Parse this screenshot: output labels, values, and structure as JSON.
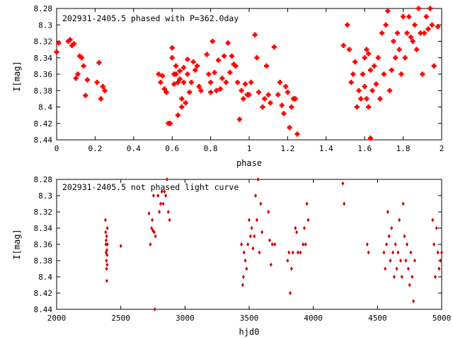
{
  "chart_data": [
    {
      "type": "scatter",
      "title": "202931-2405.5 phased with P=362.0day",
      "xlabel": "phase",
      "ylabel": "I[mag]",
      "xlim": [
        0,
        2
      ],
      "ylim": [
        8.44,
        8.28
      ],
      "y_inverted": true,
      "x_ticks": [
        0,
        0.2,
        0.4,
        0.6,
        0.8,
        1,
        1.2,
        1.4,
        1.6,
        1.8,
        2
      ],
      "x_tick_labels": [
        "0",
        "0.2",
        "0.4",
        "0.6",
        "0.8",
        "1",
        "1.2",
        "1.4",
        "1.6",
        "1.8",
        "2"
      ],
      "y_ticks": [
        8.28,
        8.3,
        8.32,
        8.34,
        8.36,
        8.38,
        8.4,
        8.42,
        8.44
      ],
      "y_tick_labels": [
        "8.28",
        "8.3",
        "8.32",
        "8.34",
        "8.36",
        "8.38",
        "8.4",
        "8.42",
        "8.44"
      ],
      "marker_color": "#ff0000",
      "grid": false,
      "points": [
        [
          0.0,
          8.333
        ],
        [
          0.01,
          8.322
        ],
        [
          0.06,
          8.32
        ],
        [
          0.07,
          8.318
        ],
        [
          0.08,
          8.325
        ],
        [
          0.09,
          8.323
        ],
        [
          0.1,
          8.365
        ],
        [
          0.11,
          8.36
        ],
        [
          0.12,
          8.338
        ],
        [
          0.13,
          8.34
        ],
        [
          0.14,
          8.35
        ],
        [
          0.15,
          8.386
        ],
        [
          0.16,
          8.367
        ],
        [
          0.21,
          8.37
        ],
        [
          0.22,
          8.346
        ],
        [
          0.23,
          8.39
        ],
        [
          0.24,
          8.375
        ],
        [
          0.25,
          8.38
        ],
        [
          0.53,
          8.36
        ],
        [
          0.54,
          8.37
        ],
        [
          0.55,
          8.362
        ],
        [
          0.56,
          8.378
        ],
        [
          0.57,
          8.382
        ],
        [
          0.58,
          8.42
        ],
        [
          0.59,
          8.42
        ],
        [
          0.6,
          8.34
        ],
        [
          0.6,
          8.328
        ],
        [
          0.61,
          8.36
        ],
        [
          0.61,
          8.372
        ],
        [
          0.62,
          8.36
        ],
        [
          0.62,
          8.35
        ],
        [
          0.63,
          8.37
        ],
        [
          0.63,
          8.41
        ],
        [
          0.64,
          8.366
        ],
        [
          0.64,
          8.356
        ],
        [
          0.65,
          8.4
        ],
        [
          0.65,
          8.39
        ],
        [
          0.66,
          8.37
        ],
        [
          0.66,
          8.352
        ],
        [
          0.67,
          8.395
        ],
        [
          0.68,
          8.36
        ],
        [
          0.68,
          8.342
        ],
        [
          0.69,
          8.382
        ],
        [
          0.7,
          8.37
        ],
        [
          0.71,
          8.345
        ],
        [
          0.72,
          8.355
        ],
        [
          0.73,
          8.35
        ],
        [
          0.74,
          8.375
        ],
        [
          0.75,
          8.38
        ],
        [
          0.78,
          8.336
        ],
        [
          0.79,
          8.36
        ],
        [
          0.8,
          8.37
        ],
        [
          0.8,
          8.382
        ],
        [
          0.81,
          8.32
        ],
        [
          0.82,
          8.358
        ],
        [
          0.83,
          8.38
        ],
        [
          0.84,
          8.343
        ],
        [
          0.85,
          8.378
        ],
        [
          0.86,
          8.365
        ],
        [
          0.87,
          8.338
        ],
        [
          0.88,
          8.37
        ],
        [
          0.89,
          8.322
        ],
        [
          0.9,
          8.358
        ],
        [
          0.91,
          8.338
        ],
        [
          0.92,
          8.348
        ],
        [
          0.93,
          8.35
        ],
        [
          0.94,
          8.37
        ],
        [
          0.95,
          8.415
        ],
        [
          0.96,
          8.38
        ],
        [
          0.97,
          8.39
        ],
        [
          0.98,
          8.372
        ],
        [
          0.99,
          8.385
        ],
        [
          1.0,
          8.385
        ],
        [
          1.01,
          8.37
        ],
        [
          1.03,
          8.312
        ],
        [
          1.04,
          8.34
        ],
        [
          1.05,
          8.382
        ],
        [
          1.07,
          8.4
        ],
        [
          1.08,
          8.39
        ],
        [
          1.09,
          8.35
        ],
        [
          1.1,
          8.385
        ],
        [
          1.11,
          8.395
        ],
        [
          1.13,
          8.327
        ],
        [
          1.15,
          8.385
        ],
        [
          1.16,
          8.37
        ],
        [
          1.17,
          8.398
        ],
        [
          1.18,
          8.408
        ],
        [
          1.19,
          8.375
        ],
        [
          1.2,
          8.382
        ],
        [
          1.21,
          8.425
        ],
        [
          1.22,
          8.4
        ],
        [
          1.23,
          8.39
        ],
        [
          1.24,
          8.39
        ],
        [
          1.25,
          8.433
        ],
        [
          1.49,
          8.325
        ],
        [
          1.51,
          8.3
        ],
        [
          1.52,
          8.33
        ],
        [
          1.53,
          8.37
        ],
        [
          1.54,
          8.36
        ],
        [
          1.55,
          8.345
        ],
        [
          1.56,
          8.4
        ],
        [
          1.57,
          8.38
        ],
        [
          1.58,
          8.39
        ],
        [
          1.59,
          8.36
        ],
        [
          1.6,
          8.375
        ],
        [
          1.6,
          8.34
        ],
        [
          1.61,
          8.39
        ],
        [
          1.61,
          8.33
        ],
        [
          1.62,
          8.4
        ],
        [
          1.62,
          8.335
        ],
        [
          1.63,
          8.438
        ],
        [
          1.63,
          8.355
        ],
        [
          1.64,
          8.38
        ],
        [
          1.65,
          8.35
        ],
        [
          1.66,
          8.372
        ],
        [
          1.67,
          8.34
        ],
        [
          1.68,
          8.39
        ],
        [
          1.69,
          8.31
        ],
        [
          1.7,
          8.36
        ],
        [
          1.71,
          8.3
        ],
        [
          1.72,
          8.283
        ],
        [
          1.73,
          8.38
        ],
        [
          1.74,
          8.355
        ],
        [
          1.75,
          8.32
        ],
        [
          1.76,
          8.34
        ],
        [
          1.77,
          8.31
        ],
        [
          1.78,
          8.33
        ],
        [
          1.79,
          8.36
        ],
        [
          1.8,
          8.29
        ],
        [
          1.81,
          8.34
        ],
        [
          1.82,
          8.31
        ],
        [
          1.83,
          8.29
        ],
        [
          1.84,
          8.315
        ],
        [
          1.85,
          8.32
        ],
        [
          1.86,
          8.3
        ],
        [
          1.87,
          8.33
        ],
        [
          1.88,
          8.28
        ],
        [
          1.89,
          8.31
        ],
        [
          1.9,
          8.36
        ],
        [
          1.91,
          8.31
        ],
        [
          1.92,
          8.29
        ],
        [
          1.93,
          8.305
        ],
        [
          1.94,
          8.28
        ],
        [
          1.95,
          8.3
        ],
        [
          1.96,
          8.35
        ],
        [
          1.98,
          8.302
        ]
      ]
    },
    {
      "type": "scatter",
      "title": "202931-2405.5 not phased light curve",
      "xlabel": "hjd0",
      "ylabel": "I[mag]",
      "xlim": [
        2000,
        5000
      ],
      "ylim": [
        8.44,
        8.28
      ],
      "y_inverted": true,
      "x_ticks": [
        2000,
        2500,
        3000,
        3500,
        4000,
        4500,
        5000
      ],
      "x_tick_labels": [
        "2000",
        "2500",
        "3000",
        "3500",
        "4000",
        "4500",
        "5000"
      ],
      "y_ticks": [
        8.28,
        8.3,
        8.32,
        8.34,
        8.36,
        8.38,
        8.4,
        8.42,
        8.44
      ],
      "y_tick_labels": [
        "8.28",
        "8.3",
        "8.32",
        "8.34",
        "8.36",
        "8.38",
        "8.4",
        "8.42",
        "8.44"
      ],
      "marker_color": "#cc0000",
      "grid": false,
      "points": [
        [
          2380,
          8.33
        ],
        [
          2382,
          8.345
        ],
        [
          2384,
          8.36
        ],
        [
          2385,
          8.37
        ],
        [
          2386,
          8.355
        ],
        [
          2388,
          8.38
        ],
        [
          2389,
          8.39
        ],
        [
          2390,
          8.35
        ],
        [
          2391,
          8.405
        ],
        [
          2392,
          8.367
        ],
        [
          2393,
          8.373
        ],
        [
          2394,
          8.385
        ],
        [
          2395,
          8.34
        ],
        [
          2396,
          8.36
        ],
        [
          2500,
          8.362
        ],
        [
          2720,
          8.322
        ],
        [
          2730,
          8.36
        ],
        [
          2740,
          8.34
        ],
        [
          2745,
          8.33
        ],
        [
          2750,
          8.343
        ],
        [
          2755,
          8.3
        ],
        [
          2760,
          8.345
        ],
        [
          2765,
          8.44
        ],
        [
          2770,
          8.35
        ],
        [
          2790,
          8.3
        ],
        [
          2800,
          8.32
        ],
        [
          2810,
          8.31
        ],
        [
          2820,
          8.295
        ],
        [
          2830,
          8.31
        ],
        [
          2840,
          8.295
        ],
        [
          2850,
          8.3
        ],
        [
          2860,
          8.28
        ],
        [
          2870,
          8.32
        ],
        [
          2880,
          8.33
        ],
        [
          3440,
          8.36
        ],
        [
          3450,
          8.41
        ],
        [
          3455,
          8.4
        ],
        [
          3460,
          8.37
        ],
        [
          3470,
          8.38
        ],
        [
          3480,
          8.39
        ],
        [
          3490,
          8.36
        ],
        [
          3500,
          8.33
        ],
        [
          3510,
          8.35
        ],
        [
          3520,
          8.34
        ],
        [
          3530,
          8.365
        ],
        [
          3540,
          8.35
        ],
        [
          3550,
          8.3
        ],
        [
          3560,
          8.33
        ],
        [
          3570,
          8.28
        ],
        [
          3580,
          8.37
        ],
        [
          3590,
          8.31
        ],
        [
          3600,
          8.345
        ],
        [
          3650,
          8.32
        ],
        [
          3660,
          8.355
        ],
        [
          3670,
          8.385
        ],
        [
          3680,
          8.36
        ],
        [
          3700,
          8.36
        ],
        [
          3800,
          8.38
        ],
        [
          3810,
          8.37
        ],
        [
          3820,
          8.42
        ],
        [
          3830,
          8.39
        ],
        [
          3840,
          8.37
        ],
        [
          3860,
          8.34
        ],
        [
          3870,
          8.345
        ],
        [
          3880,
          8.37
        ],
        [
          3900,
          8.37
        ],
        [
          3920,
          8.36
        ],
        [
          3930,
          8.34
        ],
        [
          3940,
          8.36
        ],
        [
          3950,
          8.31
        ],
        [
          3960,
          8.33
        ],
        [
          4230,
          8.285
        ],
        [
          4240,
          8.31
        ],
        [
          4420,
          8.36
        ],
        [
          4430,
          8.37
        ],
        [
          4550,
          8.37
        ],
        [
          4560,
          8.39
        ],
        [
          4570,
          8.36
        ],
        [
          4580,
          8.32
        ],
        [
          4590,
          8.35
        ],
        [
          4600,
          8.38
        ],
        [
          4610,
          8.34
        ],
        [
          4620,
          8.37
        ],
        [
          4630,
          8.4
        ],
        [
          4640,
          8.36
        ],
        [
          4650,
          8.39
        ],
        [
          4660,
          8.37
        ],
        [
          4670,
          8.33
        ],
        [
          4680,
          8.38
        ],
        [
          4690,
          8.4
        ],
        [
          4700,
          8.31
        ],
        [
          4710,
          8.35
        ],
        [
          4720,
          8.38
        ],
        [
          4730,
          8.36
        ],
        [
          4740,
          8.39
        ],
        [
          4750,
          8.41
        ],
        [
          4760,
          8.37
        ],
        [
          4770,
          8.4
        ],
        [
          4780,
          8.43
        ],
        [
          4790,
          8.38
        ],
        [
          4930,
          8.33
        ],
        [
          4940,
          8.36
        ],
        [
          4950,
          8.4
        ],
        [
          4960,
          8.34
        ],
        [
          4970,
          8.37
        ],
        [
          4980,
          8.39
        ],
        [
          4990,
          8.38
        ],
        [
          5000,
          8.37
        ]
      ]
    }
  ]
}
